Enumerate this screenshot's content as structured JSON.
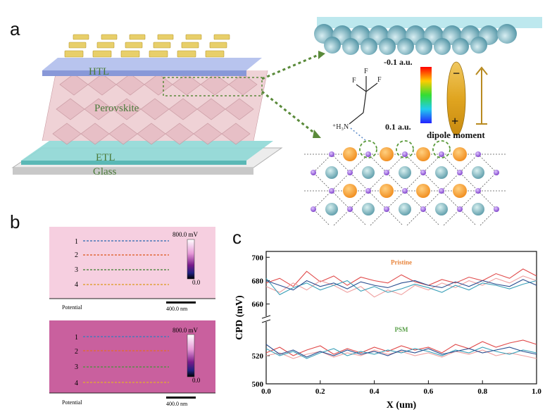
{
  "figure": {
    "panel_a": {
      "letter": "a",
      "layers": {
        "htl": "HTL",
        "perovskite": "Perovskite",
        "etl": "ETL",
        "glass": "Glass"
      },
      "colorbar": {
        "top": "-0.1 a.u.",
        "bottom": "0.1 a.u."
      },
      "dipole": {
        "label": "dipole moment",
        "minus": "−",
        "plus": "+"
      },
      "molecule": {
        "f1": "F",
        "f2": "F",
        "f3": "F",
        "amine": "⁺H₃N"
      },
      "colors": {
        "htl": "#a7b6e6",
        "perovskite": "#e8c4c8",
        "etl": "#8fd8d6",
        "gold": "#e8cf6a",
        "connector": "#5a8a3a"
      }
    },
    "panel_b": {
      "letter": "b",
      "top_map": {
        "lines": [
          "1",
          "2",
          "3",
          "4"
        ],
        "scale_max": "800.0 mV",
        "scale_min": "0.0",
        "footer_left": "Potential",
        "scalebar": "400.0 nm",
        "bg": "#f6cfe0"
      },
      "bottom_map": {
        "lines": [
          "1",
          "2",
          "3",
          "4"
        ],
        "scale_max": "800.0 mV",
        "scale_min": "0.0",
        "footer_left": "Potential",
        "scalebar": "400.0 nm",
        "bg": "#c9609e"
      },
      "line_colors": [
        "#4a78b8",
        "#e06a3a",
        "#5a8a4a",
        "#e0a23a"
      ]
    },
    "panel_c": {
      "letter": "c",
      "label_pristine": "Pristine",
      "label_psm": "PSM"
    }
  },
  "chart_data": {
    "type": "line",
    "xlabel": "X (um)",
    "ylabel": "CPD (mV)",
    "xlim": [
      0.0,
      1.0
    ],
    "x_ticks": [
      "0.0",
      "0.2",
      "0.4",
      "0.6",
      "0.8",
      "1.0"
    ],
    "y_ticks_upper": [
      "660",
      "680",
      "700"
    ],
    "y_ticks_lower": [
      "500",
      "520"
    ],
    "ylim_upper": [
      655,
      705
    ],
    "ylim_lower": [
      500,
      540
    ],
    "broken_axis": true,
    "groups": [
      {
        "label": "Pristine",
        "label_color": "#e8843a",
        "series": [
          {
            "color": "#e04848",
            "x": [
              0.0,
              0.05,
              0.1,
              0.15,
              0.2,
              0.25,
              0.3,
              0.35,
              0.4,
              0.45,
              0.5,
              0.55,
              0.6,
              0.65,
              0.7,
              0.75,
              0.8,
              0.85,
              0.9,
              0.95,
              1.0
            ],
            "values": [
              678,
              682,
              675,
              688,
              679,
              684,
              676,
              683,
              680,
              678,
              685,
              679,
              676,
              681,
              678,
              683,
              680,
              686,
              682,
              690,
              684
            ]
          },
          {
            "color": "#f0a0a0",
            "x": [
              0.0,
              0.05,
              0.1,
              0.15,
              0.2,
              0.25,
              0.3,
              0.35,
              0.4,
              0.45,
              0.5,
              0.55,
              0.6,
              0.65,
              0.7,
              0.75,
              0.8,
              0.85,
              0.9,
              0.95,
              1.0
            ],
            "values": [
              675,
              670,
              678,
              672,
              680,
              676,
              670,
              675,
              666,
              672,
              668,
              676,
              672,
              678,
              674,
              680,
              676,
              682,
              678,
              684,
              680
            ]
          },
          {
            "color": "#3aa0b8",
            "x": [
              0.0,
              0.05,
              0.1,
              0.15,
              0.2,
              0.25,
              0.3,
              0.35,
              0.4,
              0.45,
              0.5,
              0.55,
              0.6,
              0.65,
              0.7,
              0.75,
              0.8,
              0.85,
              0.9,
              0.95,
              1.0
            ],
            "values": [
              682,
              668,
              674,
              678,
              672,
              676,
              680,
              671,
              675,
              670,
              673,
              677,
              674,
              670,
              676,
              672,
              678,
              676,
              673,
              677,
              680
            ]
          },
          {
            "color": "#2a4e90",
            "x": [
              0.0,
              0.05,
              0.1,
              0.15,
              0.2,
              0.25,
              0.3,
              0.35,
              0.4,
              0.45,
              0.5,
              0.55,
              0.6,
              0.65,
              0.7,
              0.75,
              0.8,
              0.85,
              0.9,
              0.95,
              1.0
            ],
            "values": [
              680,
              676,
              672,
              680,
              675,
              678,
              673,
              679,
              676,
              674,
              678,
              680,
              676,
              674,
              679,
              675,
              680,
              677,
              675,
              681,
              676
            ]
          }
        ]
      },
      {
        "label": "PSM",
        "label_color": "#5aa04a",
        "series": [
          {
            "color": "#e04848",
            "x": [
              0.0,
              0.05,
              0.1,
              0.15,
              0.2,
              0.25,
              0.3,
              0.35,
              0.4,
              0.45,
              0.5,
              0.55,
              0.6,
              0.65,
              0.7,
              0.75,
              0.8,
              0.85,
              0.9,
              0.95,
              1.0
            ],
            "values": [
              522,
              526,
              520,
              524,
              527,
              521,
              525,
              522,
              526,
              523,
              527,
              524,
              526,
              522,
              528,
              525,
              530,
              526,
              529,
              531,
              528
            ]
          },
          {
            "color": "#f0a0a0",
            "x": [
              0.0,
              0.05,
              0.1,
              0.15,
              0.2,
              0.25,
              0.3,
              0.35,
              0.4,
              0.45,
              0.5,
              0.55,
              0.6,
              0.65,
              0.7,
              0.75,
              0.8,
              0.85,
              0.9,
              0.95,
              1.0
            ],
            "values": [
              520,
              522,
              518,
              521,
              523,
              519,
              522,
              520,
              524,
              521,
              523,
              520,
              522,
              519,
              523,
              521,
              524,
              520,
              522,
              520,
              518
            ]
          },
          {
            "color": "#3aa0b8",
            "x": [
              0.0,
              0.05,
              0.1,
              0.15,
              0.2,
              0.25,
              0.3,
              0.35,
              0.4,
              0.45,
              0.5,
              0.55,
              0.6,
              0.65,
              0.7,
              0.75,
              0.8,
              0.85,
              0.9,
              0.95,
              1.0
            ],
            "values": [
              525,
              520,
              523,
              518,
              522,
              525,
              520,
              523,
              521,
              524,
              522,
              525,
              523,
              520,
              524,
              522,
              526,
              523,
              521,
              524,
              522
            ]
          },
          {
            "color": "#2a4e90",
            "x": [
              0.0,
              0.05,
              0.1,
              0.15,
              0.2,
              0.25,
              0.3,
              0.35,
              0.4,
              0.45,
              0.5,
              0.55,
              0.6,
              0.65,
              0.7,
              0.75,
              0.8,
              0.85,
              0.9,
              0.95,
              1.0
            ],
            "values": [
              528,
              521,
              524,
              519,
              523,
              520,
              524,
              521,
              523,
              520,
              524,
              522,
              525,
              521,
              523,
              525,
              522,
              524,
              526,
              523,
              521
            ]
          }
        ]
      }
    ]
  }
}
